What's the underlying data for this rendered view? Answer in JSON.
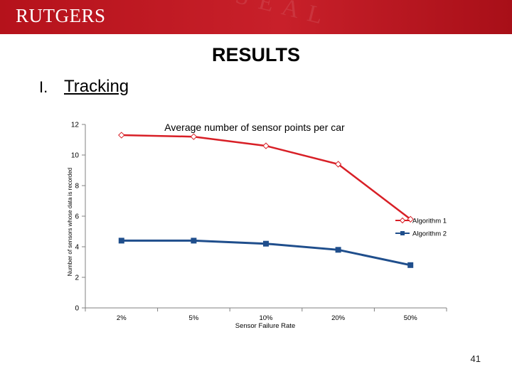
{
  "header": {
    "logo_text": "RUTGERS",
    "decor_text": "S E A L"
  },
  "slide": {
    "title": "RESULTS",
    "bullet_number": "I.",
    "bullet_text": "Tracking",
    "page_number": "41"
  },
  "chart_data": {
    "type": "line",
    "title": "Average number of sensor points per car",
    "xlabel": "Sensor Failure Rate",
    "ylabel": "Number of sensors whose data is recorded",
    "categories": [
      "2%",
      "5%",
      "10%",
      "20%",
      "50%"
    ],
    "ylim": [
      0,
      12
    ],
    "yticks": [
      0,
      2,
      4,
      6,
      8,
      10,
      12
    ],
    "grid": false,
    "legend_position": "right",
    "series": [
      {
        "name": "Algorithm 1",
        "values": [
          11.3,
          11.2,
          10.6,
          9.4,
          5.8
        ],
        "color": "#d81f26",
        "marker": "diamond"
      },
      {
        "name": "Algorithm 2",
        "values": [
          4.4,
          4.4,
          4.2,
          3.8,
          2.8
        ],
        "color": "#1f4e8c",
        "marker": "square"
      }
    ]
  }
}
